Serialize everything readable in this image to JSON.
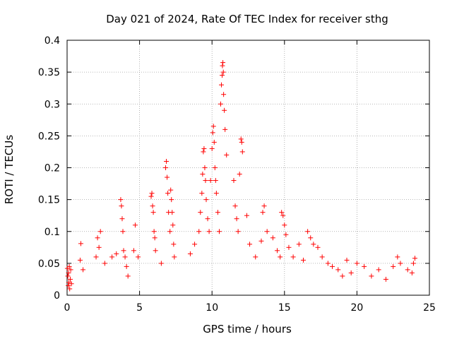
{
  "chart_data": {
    "type": "scatter",
    "title": "Day 021 of 2024, Rate Of TEC Index for receiver sthg",
    "xlabel": "GPS time / hours",
    "ylabel": "ROTI / TECUs",
    "xlim": [
      0,
      25
    ],
    "ylim": [
      0,
      0.4
    ],
    "xticks": [
      0,
      5,
      10,
      15,
      20,
      25
    ],
    "xtick_labels": [
      "0",
      "5",
      "10",
      "15",
      "20",
      "25"
    ],
    "yticks": [
      0,
      0.05,
      0.1,
      0.15,
      0.2,
      0.25,
      0.3,
      0.35,
      0.4
    ],
    "ytick_labels": [
      "0",
      "0.05",
      "0.1",
      "0.15",
      "0.2",
      "0.25",
      "0.3",
      "0.35",
      "0.4"
    ],
    "grid": true,
    "marker": "+",
    "color": "#ff0000",
    "series": [
      {
        "name": "ROTI",
        "x": [
          0.02,
          0.05,
          0.08,
          0.1,
          0.12,
          0.15,
          0.18,
          0.22,
          0.25,
          0.3,
          0.9,
          0.95,
          1.1,
          2.0,
          2.1,
          2.2,
          2.3,
          2.6,
          3.1,
          3.4,
          3.7,
          3.75,
          3.8,
          3.85,
          3.9,
          4.0,
          4.1,
          4.2,
          4.6,
          4.7,
          4.9,
          5.8,
          5.85,
          5.9,
          5.95,
          6.0,
          6.05,
          6.1,
          6.5,
          6.8,
          6.85,
          6.9,
          6.95,
          7.0,
          7.1,
          7.15,
          7.2,
          7.25,
          7.3,
          7.35,
          7.4,
          8.5,
          8.8,
          9.1,
          9.2,
          9.3,
          9.35,
          9.4,
          9.45,
          9.5,
          9.55,
          9.6,
          9.7,
          9.8,
          9.9,
          10.0,
          10.05,
          10.1,
          10.15,
          10.2,
          10.25,
          10.3,
          10.4,
          10.5,
          10.6,
          10.65,
          10.7,
          10.72,
          10.75,
          10.78,
          10.8,
          10.85,
          10.9,
          11.0,
          11.5,
          11.6,
          11.7,
          11.8,
          11.9,
          12.0,
          12.05,
          12.1,
          12.4,
          12.6,
          13.0,
          13.4,
          13.5,
          13.6,
          13.8,
          14.2,
          14.5,
          14.7,
          14.8,
          14.9,
          15.0,
          15.1,
          15.3,
          15.6,
          16.0,
          16.3,
          16.6,
          16.8,
          17.0,
          17.3,
          17.6,
          18.0,
          18.3,
          18.7,
          19.0,
          19.3,
          19.6,
          20.0,
          20.5,
          21.0,
          21.5,
          22.0,
          22.5,
          22.8,
          23.0,
          23.5,
          23.8,
          23.9,
          24.0
        ],
        "y": [
          0.042,
          0.03,
          0.015,
          0.035,
          0.02,
          0.045,
          0.01,
          0.025,
          0.04,
          0.018,
          0.055,
          0.081,
          0.04,
          0.06,
          0.09,
          0.075,
          0.1,
          0.05,
          0.06,
          0.065,
          0.15,
          0.14,
          0.12,
          0.1,
          0.07,
          0.06,
          0.045,
          0.03,
          0.07,
          0.11,
          0.06,
          0.155,
          0.16,
          0.14,
          0.13,
          0.1,
          0.09,
          0.07,
          0.05,
          0.2,
          0.21,
          0.185,
          0.16,
          0.13,
          0.1,
          0.165,
          0.15,
          0.13,
          0.11,
          0.08,
          0.06,
          0.065,
          0.08,
          0.1,
          0.13,
          0.16,
          0.19,
          0.225,
          0.23,
          0.2,
          0.18,
          0.15,
          0.12,
          0.1,
          0.18,
          0.23,
          0.255,
          0.265,
          0.24,
          0.2,
          0.18,
          0.16,
          0.13,
          0.1,
          0.3,
          0.33,
          0.345,
          0.36,
          0.365,
          0.35,
          0.315,
          0.29,
          0.26,
          0.22,
          0.18,
          0.14,
          0.12,
          0.1,
          0.19,
          0.245,
          0.24,
          0.225,
          0.125,
          0.08,
          0.06,
          0.085,
          0.13,
          0.14,
          0.1,
          0.09,
          0.07,
          0.06,
          0.13,
          0.125,
          0.11,
          0.095,
          0.075,
          0.06,
          0.08,
          0.055,
          0.1,
          0.09,
          0.08,
          0.075,
          0.06,
          0.05,
          0.045,
          0.04,
          0.03,
          0.055,
          0.035,
          0.05,
          0.045,
          0.03,
          0.04,
          0.025,
          0.045,
          0.06,
          0.05,
          0.04,
          0.035,
          0.05,
          0.058
        ]
      }
    ]
  }
}
